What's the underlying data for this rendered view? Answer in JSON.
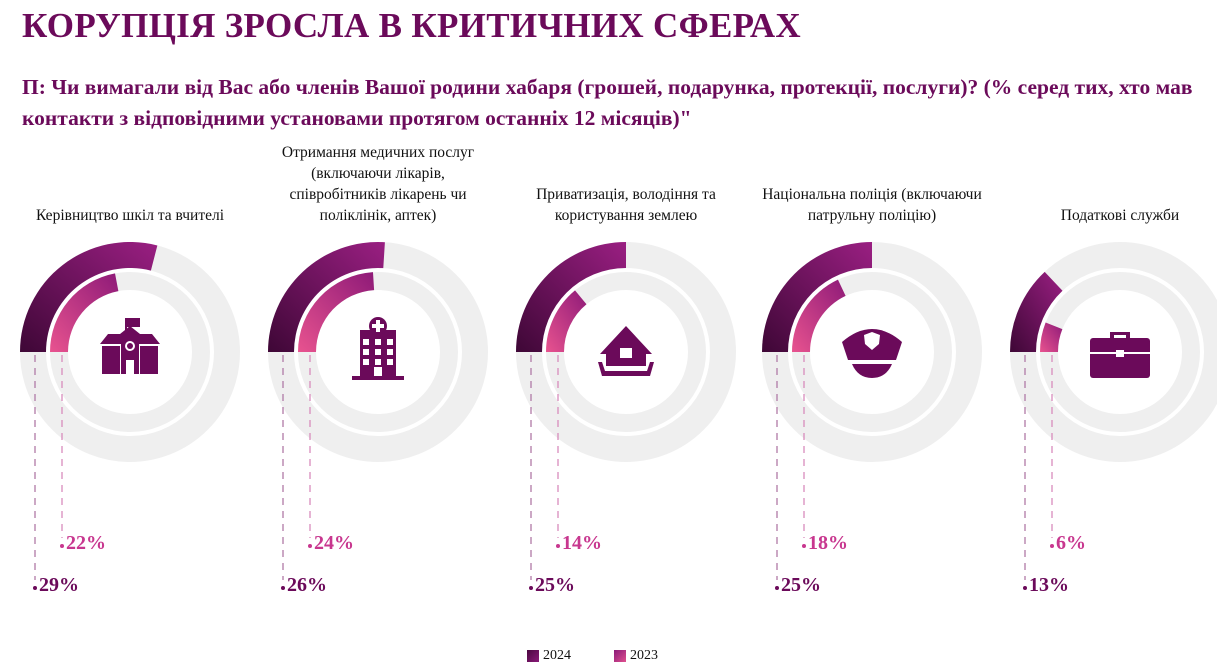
{
  "title": "КОРУПЦІЯ ЗРОСЛА В КРИТИЧНИХ СФЕРАХ",
  "question": "П: Чи вимагали від Вас або членів Вашої родини хабаря (грошей, подарунка, протекції, послуги)? (% серед тих, хто мав контакти з відповідними установами протягом останніх 12 місяців)\"",
  "colors": {
    "2024": "#6b0a5a",
    "2023": "#d6458f",
    "track": "#efefef",
    "icon": "#6b0a5a"
  },
  "chart_data": {
    "type": "radial-bar",
    "categories": [
      "Керівництво шкіл та вчителі",
      "Отримання медичних послуг (включаючи лікарів, співробітників лікарень чи поліклінік, аптек)",
      "Приватизація, володіння та користування землею",
      "Національна поліція (включаючи патрульну поліцію)",
      "Податкові служби"
    ],
    "icons": [
      "school-icon",
      "hospital-icon",
      "house-land-icon",
      "police-cap-icon",
      "briefcase-icon"
    ],
    "series": [
      {
        "name": "2024",
        "values": [
          29,
          26,
          25,
          25,
          13
        ],
        "labels": [
          "29%",
          "26%",
          "25%",
          "25%",
          "13%"
        ]
      },
      {
        "name": "2023",
        "values": [
          22,
          24,
          14,
          18,
          6
        ],
        "labels": [
          "22%",
          "24%",
          "14%",
          "18%",
          "6%"
        ]
      }
    ],
    "unit": "%",
    "range": [
      0,
      100
    ],
    "legend": "bottom"
  },
  "legend": {
    "items": [
      "2024",
      "2023"
    ]
  }
}
